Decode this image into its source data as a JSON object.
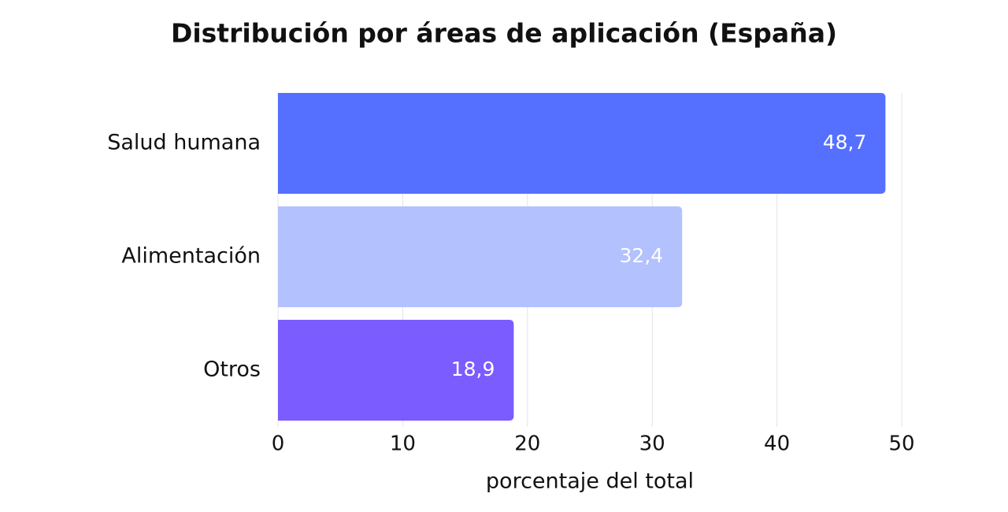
{
  "chart_data": {
    "type": "hbar",
    "title": "Distribución por áreas de aplicación (España)",
    "categories": [
      "Salud humana",
      "Alimentación",
      "Otros"
    ],
    "values": [
      48.7,
      32.4,
      18.9
    ],
    "value_labels": [
      "48,7",
      "32,4",
      "18,9"
    ],
    "colors": [
      "#5570ff",
      "#b3c1fe",
      "#7b5cff"
    ],
    "x_label": "porcentaje del total",
    "xlim": [
      0,
      50
    ],
    "xticks": [
      0,
      10,
      20,
      30,
      40,
      50
    ],
    "grid": true
  }
}
